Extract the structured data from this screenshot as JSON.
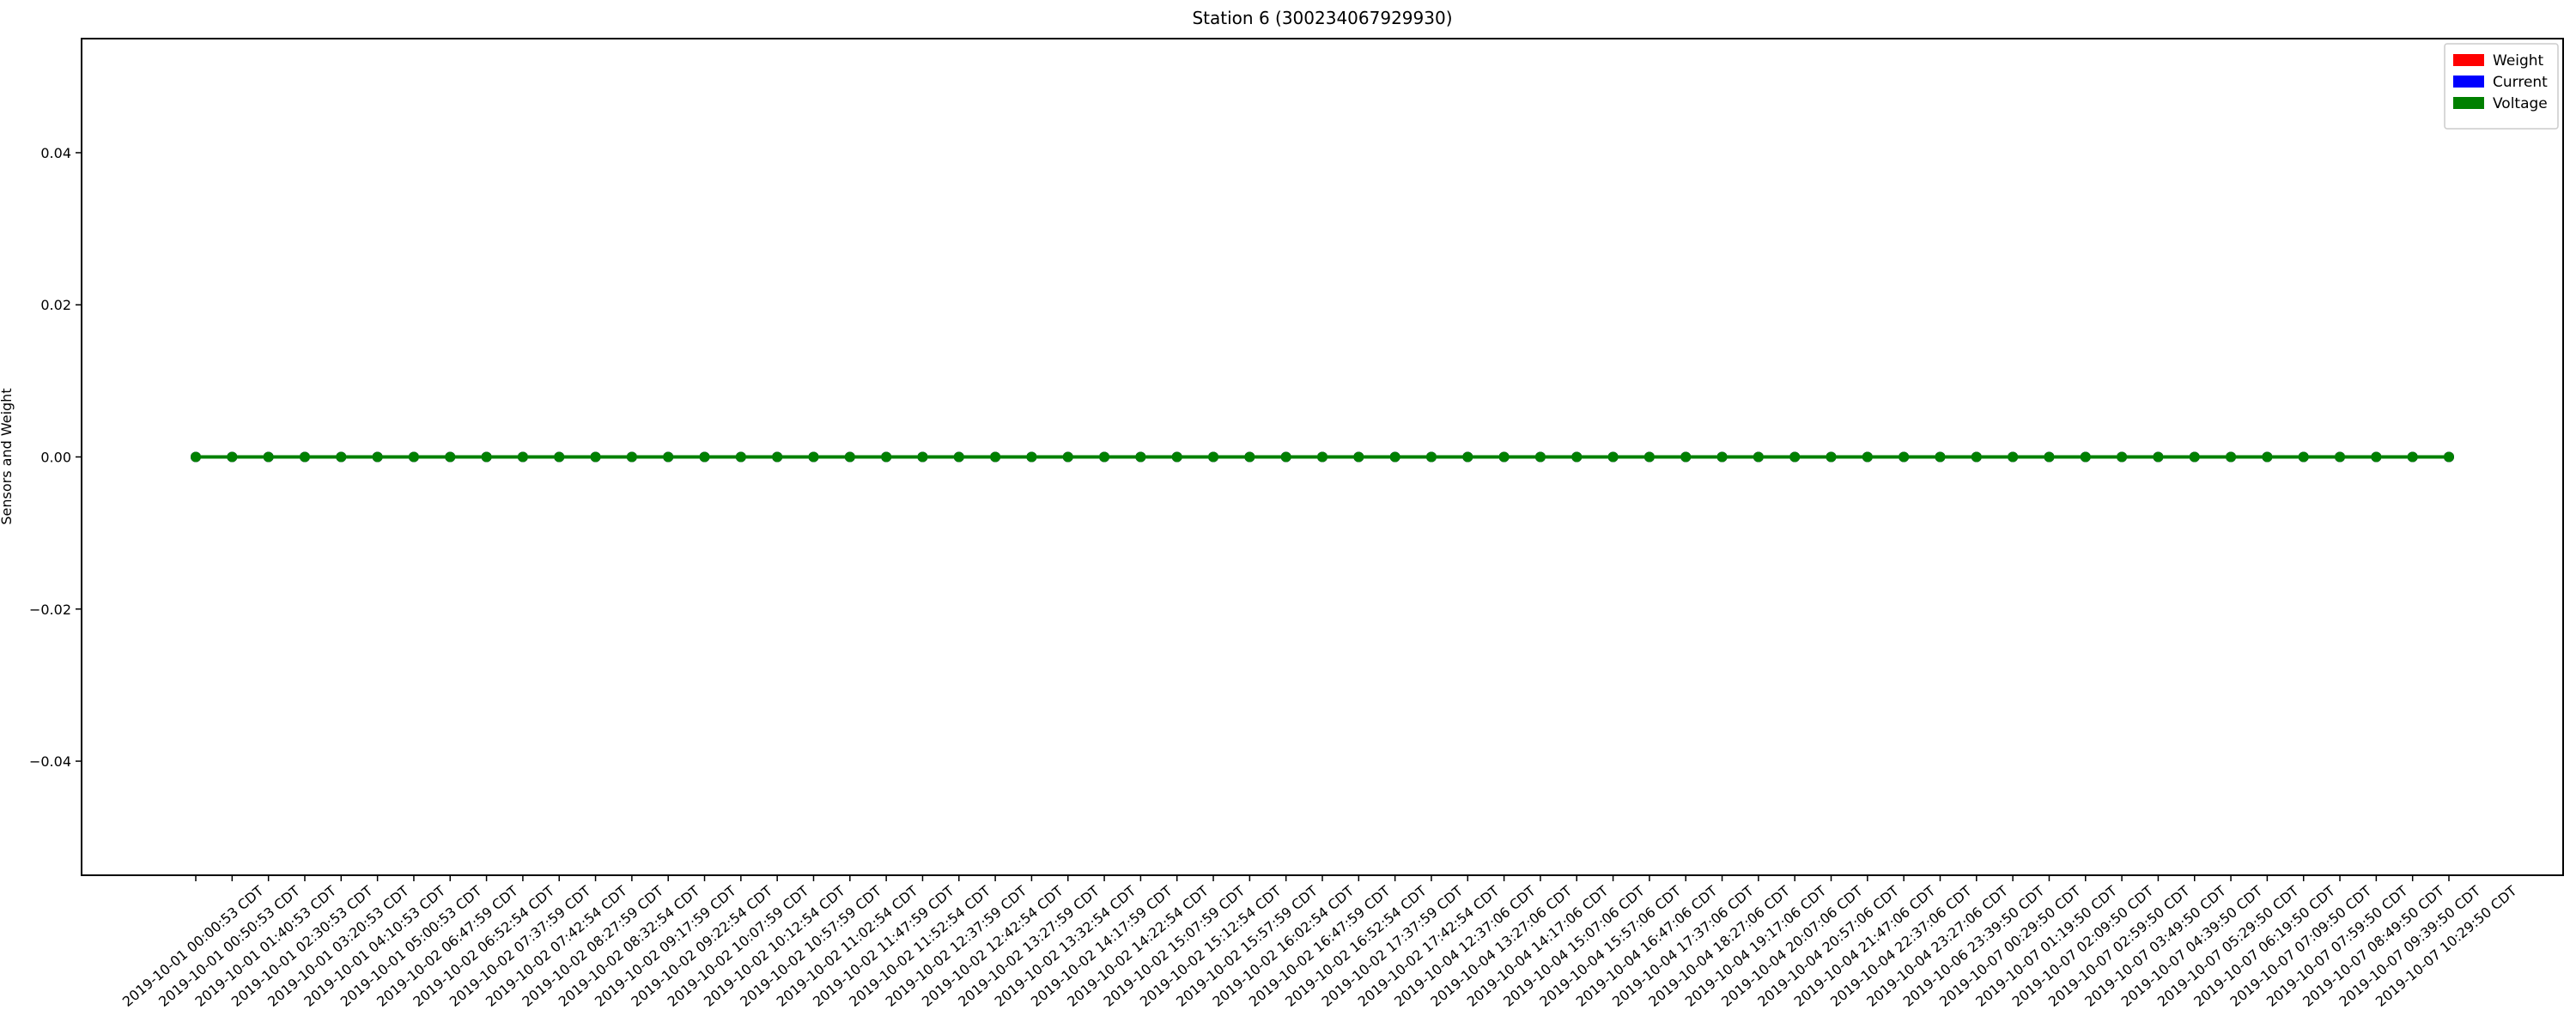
{
  "chart_data": {
    "type": "line",
    "title": "Station 6 (300234067929930)",
    "xlabel": "",
    "ylabel": "Sensors and Weight",
    "ylim": [
      -0.055,
      0.055
    ],
    "yticks": [
      -0.04,
      -0.02,
      0.0,
      0.02,
      0.04
    ],
    "ytick_labels": [
      "−0.04",
      "−0.02",
      "0.00",
      "0.02",
      "0.04"
    ],
    "grid": false,
    "legend_position": "top-right",
    "categories": [
      "2019-10-01 00:00:53 CDT",
      "2019-10-01 00:50:53 CDT",
      "2019-10-01 01:40:53 CDT",
      "2019-10-01 02:30:53 CDT",
      "2019-10-01 03:20:53 CDT",
      "2019-10-01 04:10:53 CDT",
      "2019-10-01 05:00:53 CDT",
      "2019-10-02 06:47:59 CDT",
      "2019-10-02 06:52:54 CDT",
      "2019-10-02 07:37:59 CDT",
      "2019-10-02 07:42:54 CDT",
      "2019-10-02 08:27:59 CDT",
      "2019-10-02 08:32:54 CDT",
      "2019-10-02 09:17:59 CDT",
      "2019-10-02 09:22:54 CDT",
      "2019-10-02 10:07:59 CDT",
      "2019-10-02 10:12:54 CDT",
      "2019-10-02 10:57:59 CDT",
      "2019-10-02 11:02:54 CDT",
      "2019-10-02 11:47:59 CDT",
      "2019-10-02 11:52:54 CDT",
      "2019-10-02 12:37:59 CDT",
      "2019-10-02 12:42:54 CDT",
      "2019-10-02 13:27:59 CDT",
      "2019-10-02 13:32:54 CDT",
      "2019-10-02 14:17:59 CDT",
      "2019-10-02 14:22:54 CDT",
      "2019-10-02 15:07:59 CDT",
      "2019-10-02 15:12:54 CDT",
      "2019-10-02 15:57:59 CDT",
      "2019-10-02 16:02:54 CDT",
      "2019-10-02 16:47:59 CDT",
      "2019-10-02 16:52:54 CDT",
      "2019-10-02 17:37:59 CDT",
      "2019-10-02 17:42:54 CDT",
      "2019-10-04 12:37:06 CDT",
      "2019-10-04 13:27:06 CDT",
      "2019-10-04 14:17:06 CDT",
      "2019-10-04 15:07:06 CDT",
      "2019-10-04 15:57:06 CDT",
      "2019-10-04 16:47:06 CDT",
      "2019-10-04 17:37:06 CDT",
      "2019-10-04 18:27:06 CDT",
      "2019-10-04 19:17:06 CDT",
      "2019-10-04 20:07:06 CDT",
      "2019-10-04 20:57:06 CDT",
      "2019-10-04 21:47:06 CDT",
      "2019-10-04 22:37:06 CDT",
      "2019-10-04 23:27:06 CDT",
      "2019-10-06 23:39:50 CDT",
      "2019-10-07 00:29:50 CDT",
      "2019-10-07 01:19:50 CDT",
      "2019-10-07 02:09:50 CDT",
      "2019-10-07 02:59:50 CDT",
      "2019-10-07 03:49:50 CDT",
      "2019-10-07 04:39:50 CDT",
      "2019-10-07 05:29:50 CDT",
      "2019-10-07 06:19:50 CDT",
      "2019-10-07 07:09:50 CDT",
      "2019-10-07 07:59:50 CDT",
      "2019-10-07 08:49:50 CDT",
      "2019-10-07 09:39:50 CDT",
      "2019-10-07 10:29:50 CDT"
    ],
    "series": [
      {
        "name": "Weight",
        "color": "#ff0000",
        "values": [
          0,
          0,
          0,
          0,
          0,
          0,
          0,
          0,
          0,
          0,
          0,
          0,
          0,
          0,
          0,
          0,
          0,
          0,
          0,
          0,
          0,
          0,
          0,
          0,
          0,
          0,
          0,
          0,
          0,
          0,
          0,
          0,
          0,
          0,
          0,
          0,
          0,
          0,
          0,
          0,
          0,
          0,
          0,
          0,
          0,
          0,
          0,
          0,
          0,
          0,
          0,
          0,
          0,
          0,
          0,
          0,
          0,
          0,
          0,
          0,
          0,
          0,
          0
        ]
      },
      {
        "name": "Current",
        "color": "#0000ff",
        "values": [
          0,
          0,
          0,
          0,
          0,
          0,
          0,
          0,
          0,
          0,
          0,
          0,
          0,
          0,
          0,
          0,
          0,
          0,
          0,
          0,
          0,
          0,
          0,
          0,
          0,
          0,
          0,
          0,
          0,
          0,
          0,
          0,
          0,
          0,
          0,
          0,
          0,
          0,
          0,
          0,
          0,
          0,
          0,
          0,
          0,
          0,
          0,
          0,
          0,
          0,
          0,
          0,
          0,
          0,
          0,
          0,
          0,
          0,
          0,
          0,
          0,
          0,
          0
        ]
      },
      {
        "name": "Voltage",
        "color": "#008000",
        "values": [
          0,
          0,
          0,
          0,
          0,
          0,
          0,
          0,
          0,
          0,
          0,
          0,
          0,
          0,
          0,
          0,
          0,
          0,
          0,
          0,
          0,
          0,
          0,
          0,
          0,
          0,
          0,
          0,
          0,
          0,
          0,
          0,
          0,
          0,
          0,
          0,
          0,
          0,
          0,
          0,
          0,
          0,
          0,
          0,
          0,
          0,
          0,
          0,
          0,
          0,
          0,
          0,
          0,
          0,
          0,
          0,
          0,
          0,
          0,
          0,
          0,
          0,
          0
        ]
      }
    ]
  }
}
